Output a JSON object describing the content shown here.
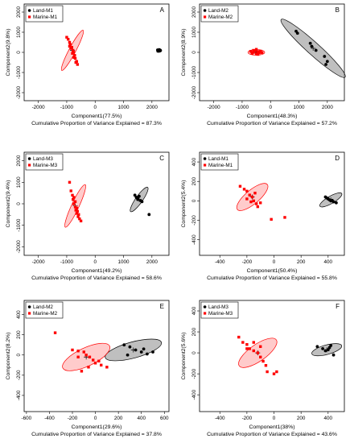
{
  "chart_data": [
    {
      "type": "scatter",
      "panel": "A",
      "xlabel": "Component1(77.5%)",
      "ylabel": "Component2(9.8%)",
      "subtitle": "Cumulative Proportion of Variance Explained = 87.3%",
      "xlim": [
        -2500,
        2600
      ],
      "ylim": [
        -2400,
        2400
      ],
      "xticks": [
        -2000,
        -1000,
        0,
        1000,
        2000
      ],
      "yticks": [
        -2000,
        -1000,
        0,
        1000,
        2000
      ],
      "series": [
        {
          "name": "Land-M1",
          "color": "#000000",
          "marker": "circle",
          "points": [
            [
              2200,
              120
            ],
            [
              2240,
              80
            ],
            [
              2270,
              100
            ],
            [
              2300,
              90
            ],
            [
              2230,
              110
            ],
            [
              2280,
              70
            ],
            [
              2260,
              130
            ],
            [
              2210,
              60
            ],
            [
              2290,
              110
            ],
            [
              2250,
              90
            ]
          ],
          "ellipse": {
            "center": [
              2255,
              95
            ],
            "rx": 60,
            "ry": 45,
            "angle": 0,
            "color": "#000000"
          }
        },
        {
          "name": "Marine-M1",
          "color": "#ff0000",
          "marker": "square",
          "points": [
            [
              -1000,
              750
            ],
            [
              -950,
              650
            ],
            [
              -900,
              500
            ],
            [
              -880,
              400
            ],
            [
              -820,
              250
            ],
            [
              -780,
              100
            ],
            [
              -760,
              0
            ],
            [
              -720,
              -150
            ],
            [
              -700,
              -300
            ],
            [
              -650,
              -450
            ],
            [
              -620,
              -600
            ],
            [
              -900,
              300
            ],
            [
              -850,
              200
            ],
            [
              -800,
              -50
            ],
            [
              -750,
              -250
            ],
            [
              -680,
              -500
            ]
          ],
          "ellipse": {
            "center": [
              -800,
              100
            ],
            "rx": 950,
            "ry": 140,
            "angle": -62,
            "color": "#ff0000"
          }
        }
      ]
    },
    {
      "type": "scatter",
      "panel": "B",
      "xlabel": "Component1(48.3%)",
      "ylabel": "Component2(8.9%)",
      "subtitle": "Cumulative Proportion of Variance Explained = 57.2%",
      "xlim": [
        -2500,
        2600
      ],
      "ylim": [
        -2400,
        2400
      ],
      "xticks": [
        -2000,
        -1000,
        0,
        1000,
        2000
      ],
      "yticks": [
        -2000,
        -1000,
        0,
        1000,
        2000
      ],
      "series": [
        {
          "name": "Land-M2",
          "color": "#000000",
          "marker": "circle",
          "points": [
            [
              900,
              1050
            ],
            [
              950,
              950
            ],
            [
              1400,
              450
            ],
            [
              1450,
              300
            ],
            [
              1600,
              100
            ],
            [
              1900,
              -200
            ],
            [
              2000,
              -450
            ],
            [
              1950,
              -600
            ]
          ],
          "ellipse": {
            "center": [
              1500,
              200
            ],
            "rx": 1800,
            "ry": 260,
            "angle": 42,
            "color": "#000000"
          }
        },
        {
          "name": "Marine-M2",
          "color": "#ff0000",
          "marker": "square",
          "points": [
            [
              -700,
              50
            ],
            [
              -650,
              -50
            ],
            [
              -600,
              0
            ],
            [
              -550,
              80
            ],
            [
              -500,
              -80
            ],
            [
              -450,
              30
            ],
            [
              -400,
              -30
            ],
            [
              -350,
              60
            ],
            [
              -300,
              -10
            ],
            [
              -600,
              100
            ],
            [
              -500,
              150
            ],
            [
              -450,
              -100
            ],
            [
              -650,
              -30
            ],
            [
              -400,
              40
            ]
          ],
          "ellipse": {
            "center": [
              -500,
              0
            ],
            "rx": 350,
            "ry": 120,
            "angle": 0,
            "color": "#ff0000"
          }
        }
      ]
    },
    {
      "type": "scatter",
      "panel": "C",
      "xlabel": "Component1(49.2%)",
      "ylabel": "Component2(9.4%)",
      "subtitle": "Cumulative Proportion of Variance Explained = 58.6%",
      "xlim": [
        -2500,
        2600
      ],
      "ylim": [
        -2400,
        2400
      ],
      "xticks": [
        -2000,
        -1000,
        0,
        1000,
        2000
      ],
      "yticks": [
        -2000,
        -1000,
        0,
        1000,
        2000
      ],
      "series": [
        {
          "name": "Land-M3",
          "color": "#000000",
          "marker": "circle",
          "points": [
            [
              1400,
              400
            ],
            [
              1450,
              300
            ],
            [
              1500,
              200
            ],
            [
              1550,
              350
            ],
            [
              1600,
              150
            ],
            [
              1650,
              100
            ],
            [
              1500,
              250
            ],
            [
              1900,
              -500
            ]
          ],
          "ellipse": {
            "center": [
              1550,
              200
            ],
            "rx": 600,
            "ry": 140,
            "angle": -55,
            "color": "#000000"
          }
        },
        {
          "name": "Marine-M3",
          "color": "#ff0000",
          "marker": "square",
          "points": [
            [
              -900,
              1000
            ],
            [
              -850,
              600
            ],
            [
              -800,
              400
            ],
            [
              -780,
              200
            ],
            [
              -750,
              0
            ],
            [
              -700,
              -150
            ],
            [
              -680,
              -300
            ],
            [
              -650,
              -450
            ],
            [
              -600,
              -600
            ],
            [
              -550,
              -700
            ],
            [
              -500,
              -800
            ],
            [
              -750,
              300
            ],
            [
              -700,
              100
            ],
            [
              -650,
              -200
            ],
            [
              -620,
              -350
            ],
            [
              -580,
              -500
            ]
          ],
          "ellipse": {
            "center": [
              -700,
              -100
            ],
            "rx": 950,
            "ry": 150,
            "angle": -65,
            "color": "#ff0000"
          }
        }
      ]
    },
    {
      "type": "scatter",
      "panel": "D",
      "xlabel": "Component1(50.4%)",
      "ylabel": "Component2(5.4%)",
      "subtitle": "Cumulative Proportion of Variance Explained = 55.8%",
      "xlim": [
        -550,
        520
      ],
      "ylim": [
        -560,
        500
      ],
      "xticks": [
        -400,
        -200,
        0,
        200,
        400
      ],
      "yticks": [
        -400,
        -200,
        0,
        200,
        400
      ],
      "series": [
        {
          "name": "Land-M1",
          "color": "#000000",
          "marker": "circle",
          "points": [
            [
              380,
              40
            ],
            [
              400,
              20
            ],
            [
              410,
              10
            ],
            [
              420,
              0
            ],
            [
              440,
              -10
            ],
            [
              460,
              -20
            ],
            [
              390,
              30
            ],
            [
              430,
              5
            ]
          ],
          "ellipse": {
            "center": [
              420,
              10
            ],
            "rx": 110,
            "ry": 32,
            "angle": -30,
            "color": "#000000"
          }
        },
        {
          "name": "Marine-M1",
          "color": "#ff0000",
          "marker": "square",
          "points": [
            [
              -250,
              150
            ],
            [
              -220,
              120
            ],
            [
              -200,
              100
            ],
            [
              -180,
              60
            ],
            [
              -160,
              40
            ],
            [
              -150,
              0
            ],
            [
              -130,
              -30
            ],
            [
              -120,
              -60
            ],
            [
              -200,
              20
            ],
            [
              -170,
              -10
            ],
            [
              -140,
              80
            ],
            [
              -100,
              -20
            ],
            [
              -20,
              -190
            ],
            [
              80,
              -170
            ]
          ],
          "ellipse": {
            "center": [
              -160,
              40
            ],
            "rx": 170,
            "ry": 60,
            "angle": -40,
            "color": "#ff0000"
          }
        }
      ]
    },
    {
      "type": "scatter",
      "panel": "E",
      "xlabel": "Component1(29.6%)",
      "ylabel": "Component2(8.2%)",
      "subtitle": "Cumulative Proportion of Variance Explained = 37.8%",
      "xlim": [
        -620,
        640
      ],
      "ylim": [
        -560,
        540
      ],
      "xticks": [
        -600,
        -400,
        -200,
        0,
        200,
        400,
        600
      ],
      "yticks": [
        -400,
        -200,
        0,
        200,
        400
      ],
      "series": [
        {
          "name": "Land-M2",
          "color": "#000000",
          "marker": "circle",
          "points": [
            [
              250,
              100
            ],
            [
              300,
              80
            ],
            [
              350,
              50
            ],
            [
              400,
              30
            ],
            [
              450,
              10
            ],
            [
              500,
              30
            ],
            [
              280,
              0
            ],
            [
              420,
              60
            ]
          ],
          "ellipse": {
            "center": [
              330,
              50
            ],
            "rx": 270,
            "ry": 75,
            "angle": -15,
            "color": "#000000"
          }
        },
        {
          "name": "Marine-M2",
          "color": "#ff0000",
          "marker": "square",
          "points": [
            [
              -350,
              220
            ],
            [
              -200,
              50
            ],
            [
              -150,
              40
            ],
            [
              -100,
              30
            ],
            [
              -80,
              0
            ],
            [
              -50,
              -20
            ],
            [
              -20,
              -50
            ],
            [
              0,
              -80
            ],
            [
              50,
              -100
            ],
            [
              100,
              -120
            ],
            [
              -120,
              -160
            ],
            [
              -150,
              -20
            ],
            [
              -60,
              -120
            ],
            [
              30,
              -60
            ]
          ],
          "ellipse": {
            "center": [
              -80,
              -20
            ],
            "rx": 240,
            "ry": 85,
            "angle": -25,
            "color": "#ff0000"
          }
        }
      ]
    },
    {
      "type": "scatter",
      "panel": "F",
      "xlabel": "Component1(38%)",
      "ylabel": "Component2(5.6%)",
      "subtitle": "Cumulative Proportion of Variance Explained = 43.6%",
      "xlim": [
        -550,
        520
      ],
      "ylim": [
        -560,
        500
      ],
      "xticks": [
        -400,
        -200,
        0,
        200,
        400
      ],
      "yticks": [
        -400,
        -200,
        0,
        200,
        400
      ],
      "series": [
        {
          "name": "Land-M3",
          "color": "#000000",
          "marker": "circle",
          "points": [
            [
              320,
              60
            ],
            [
              360,
              40
            ],
            [
              400,
              30
            ],
            [
              420,
              70
            ],
            [
              440,
              -20
            ],
            [
              380,
              20
            ],
            [
              410,
              50
            ]
          ],
          "ellipse": {
            "center": [
              390,
              30
            ],
            "rx": 130,
            "ry": 40,
            "angle": -15,
            "color": "#000000"
          }
        },
        {
          "name": "Marine-M3",
          "color": "#ff0000",
          "marker": "square",
          "points": [
            [
              -260,
              150
            ],
            [
              -230,
              100
            ],
            [
              -200,
              80
            ],
            [
              -180,
              40
            ],
            [
              -150,
              20
            ],
            [
              -120,
              0
            ],
            [
              -100,
              -40
            ],
            [
              -80,
              -80
            ],
            [
              -60,
              -120
            ],
            [
              -200,
              40
            ],
            [
              -150,
              100
            ],
            [
              -100,
              60
            ],
            [
              -50,
              -180
            ],
            [
              0,
              -200
            ],
            [
              20,
              -180
            ]
          ],
          "ellipse": {
            "center": [
              -120,
              0
            ],
            "rx": 190,
            "ry": 70,
            "angle": -35,
            "color": "#ff0000"
          }
        }
      ]
    }
  ]
}
